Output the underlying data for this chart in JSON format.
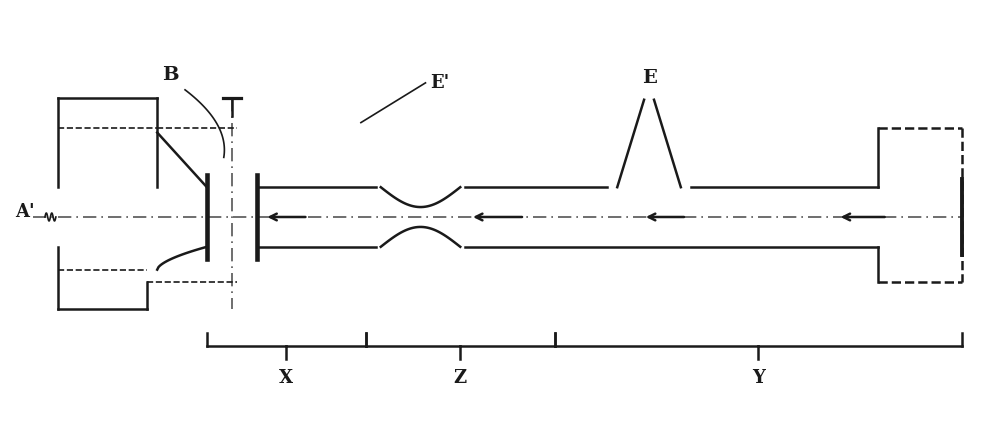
{
  "bg_color": "#ffffff",
  "line_color": "#1a1a1a",
  "dash_color": "#555555",
  "lw": 1.8,
  "lw_thin": 1.2,
  "labels": {
    "A": "A'",
    "B": "B",
    "E": "E",
    "Eprime": "E'",
    "X": "X",
    "Y": "Y",
    "Z": "Z"
  },
  "fig_w": 10.0,
  "fig_h": 4.32
}
